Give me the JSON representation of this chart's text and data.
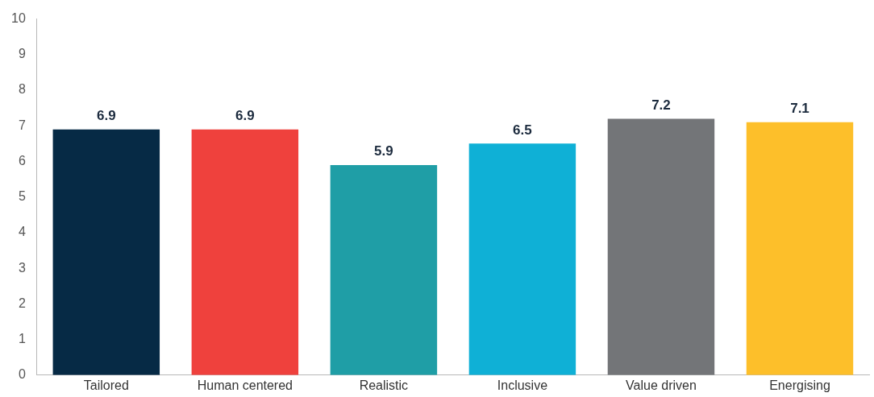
{
  "chart_data": {
    "type": "bar",
    "categories": [
      "Tailored",
      "Human centered",
      "Realistic",
      "Inclusive",
      "Value driven",
      "Energising"
    ],
    "values": [
      6.9,
      6.9,
      5.9,
      6.5,
      7.2,
      7.1
    ],
    "colors": [
      "#062a45",
      "#ef413d",
      "#1f9ea6",
      "#0fb0d6",
      "#737578",
      "#fdbf2a"
    ],
    "ylim": [
      0,
      10
    ],
    "yticks": [
      0,
      1,
      2,
      3,
      4,
      5,
      6,
      7,
      8,
      9,
      10
    ],
    "grid": false,
    "legend": false,
    "data_labels": true
  }
}
